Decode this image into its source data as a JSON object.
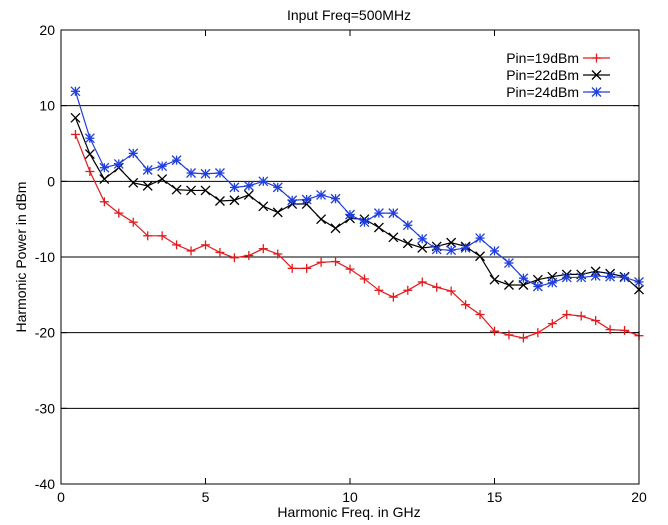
{
  "chart_data": {
    "type": "line",
    "title": "Input Freq=500MHz",
    "xlabel": "Harmonic Freq. in GHz",
    "ylabel": "Harmonic Power in dBm",
    "xlim": [
      0,
      20
    ],
    "ylim": [
      -40,
      20
    ],
    "xticks": [
      0,
      5,
      10,
      15,
      20
    ],
    "yticks": [
      -40,
      -30,
      -20,
      -10,
      0,
      10,
      20
    ],
    "grid": "horizontal",
    "legend": "top-right",
    "x": [
      0.5,
      1,
      1.5,
      2,
      2.5,
      3,
      3.5,
      4,
      4.5,
      5,
      5.5,
      6,
      6.5,
      7,
      7.5,
      8,
      8.5,
      9,
      9.5,
      10,
      10.5,
      11,
      11.5,
      12,
      12.5,
      13,
      13.5,
      14,
      14.5,
      15,
      15.5,
      16,
      16.5,
      17,
      17.5,
      18,
      18.5,
      19,
      19.5,
      20
    ],
    "series": [
      {
        "name": "Pin=19dBm",
        "color": "#e41a1c",
        "marker": "plus",
        "values": [
          6.2,
          1.3,
          -2.7,
          -4.2,
          -5.4,
          -7.2,
          -7.2,
          -8.4,
          -9.2,
          -8.4,
          -9.4,
          -10.1,
          -9.8,
          -8.9,
          -9.6,
          -11.5,
          -11.5,
          -10.7,
          -10.6,
          -11.6,
          -12.9,
          -14.4,
          -15.3,
          -14.4,
          -13.3,
          -14.0,
          -14.5,
          -16.3,
          -17.6,
          -19.8,
          -20.3,
          -20.7,
          -20.0,
          -18.8,
          -17.6,
          -17.8,
          -18.4,
          -19.6,
          -19.7,
          -20.4
        ]
      },
      {
        "name": "Pin=22dBm",
        "color": "#000000",
        "marker": "x",
        "values": [
          8.4,
          3.6,
          0.3,
          1.8,
          -0.2,
          -0.6,
          0.3,
          -1.1,
          -1.2,
          -1.2,
          -2.6,
          -2.5,
          -1.8,
          -3.3,
          -4.1,
          -3.0,
          -3.0,
          -5.0,
          -6.2,
          -4.9,
          -5.0,
          -6.1,
          -7.4,
          -8.2,
          -8.8,
          -8.6,
          -8.1,
          -8.6,
          -9.9,
          -13.0,
          -13.7,
          -13.7,
          -13.0,
          -12.6,
          -12.3,
          -12.3,
          -11.9,
          -12.2,
          -12.6,
          -14.3
        ]
      },
      {
        "name": "Pin=24dBm",
        "color": "#1f3fe0",
        "marker": "star",
        "values": [
          11.9,
          5.7,
          1.8,
          2.3,
          3.7,
          1.5,
          2.0,
          2.8,
          1.1,
          1.0,
          1.1,
          -0.8,
          -0.6,
          0.0,
          -0.8,
          -2.5,
          -2.4,
          -1.8,
          -2.3,
          -4.4,
          -5.4,
          -4.2,
          -4.2,
          -5.8,
          -7.6,
          -9.0,
          -9.1,
          -8.8,
          -7.5,
          -9.2,
          -10.8,
          -12.8,
          -13.9,
          -13.4,
          -12.7,
          -12.7,
          -12.5,
          -12.6,
          -12.7,
          -13.3
        ]
      }
    ]
  }
}
